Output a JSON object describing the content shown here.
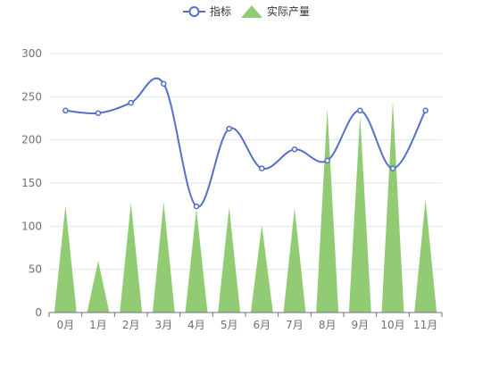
{
  "chart_data": {
    "type": "line+triangle-bar",
    "categories": [
      "0月",
      "1月",
      "2月",
      "3月",
      "4月",
      "5月",
      "6月",
      "7月",
      "8月",
      "9月",
      "10月",
      "11月"
    ],
    "ylim": [
      0,
      300
    ],
    "yticks": [
      0,
      50,
      100,
      150,
      200,
      250,
      300
    ],
    "grid": true,
    "legend_position": "top-center",
    "series": [
      {
        "name": "指标",
        "type": "line",
        "smooth": true,
        "color": "#5470c6",
        "values": [
          234,
          231,
          243,
          265,
          123,
          213,
          167,
          189,
          176,
          234,
          167,
          234
        ]
      },
      {
        "name": "实际产量",
        "type": "triangle-bar",
        "color": "#91cc75",
        "values": [
          124,
          60,
          127,
          128,
          120,
          122,
          101,
          121,
          236,
          228,
          245,
          131
        ]
      }
    ]
  }
}
